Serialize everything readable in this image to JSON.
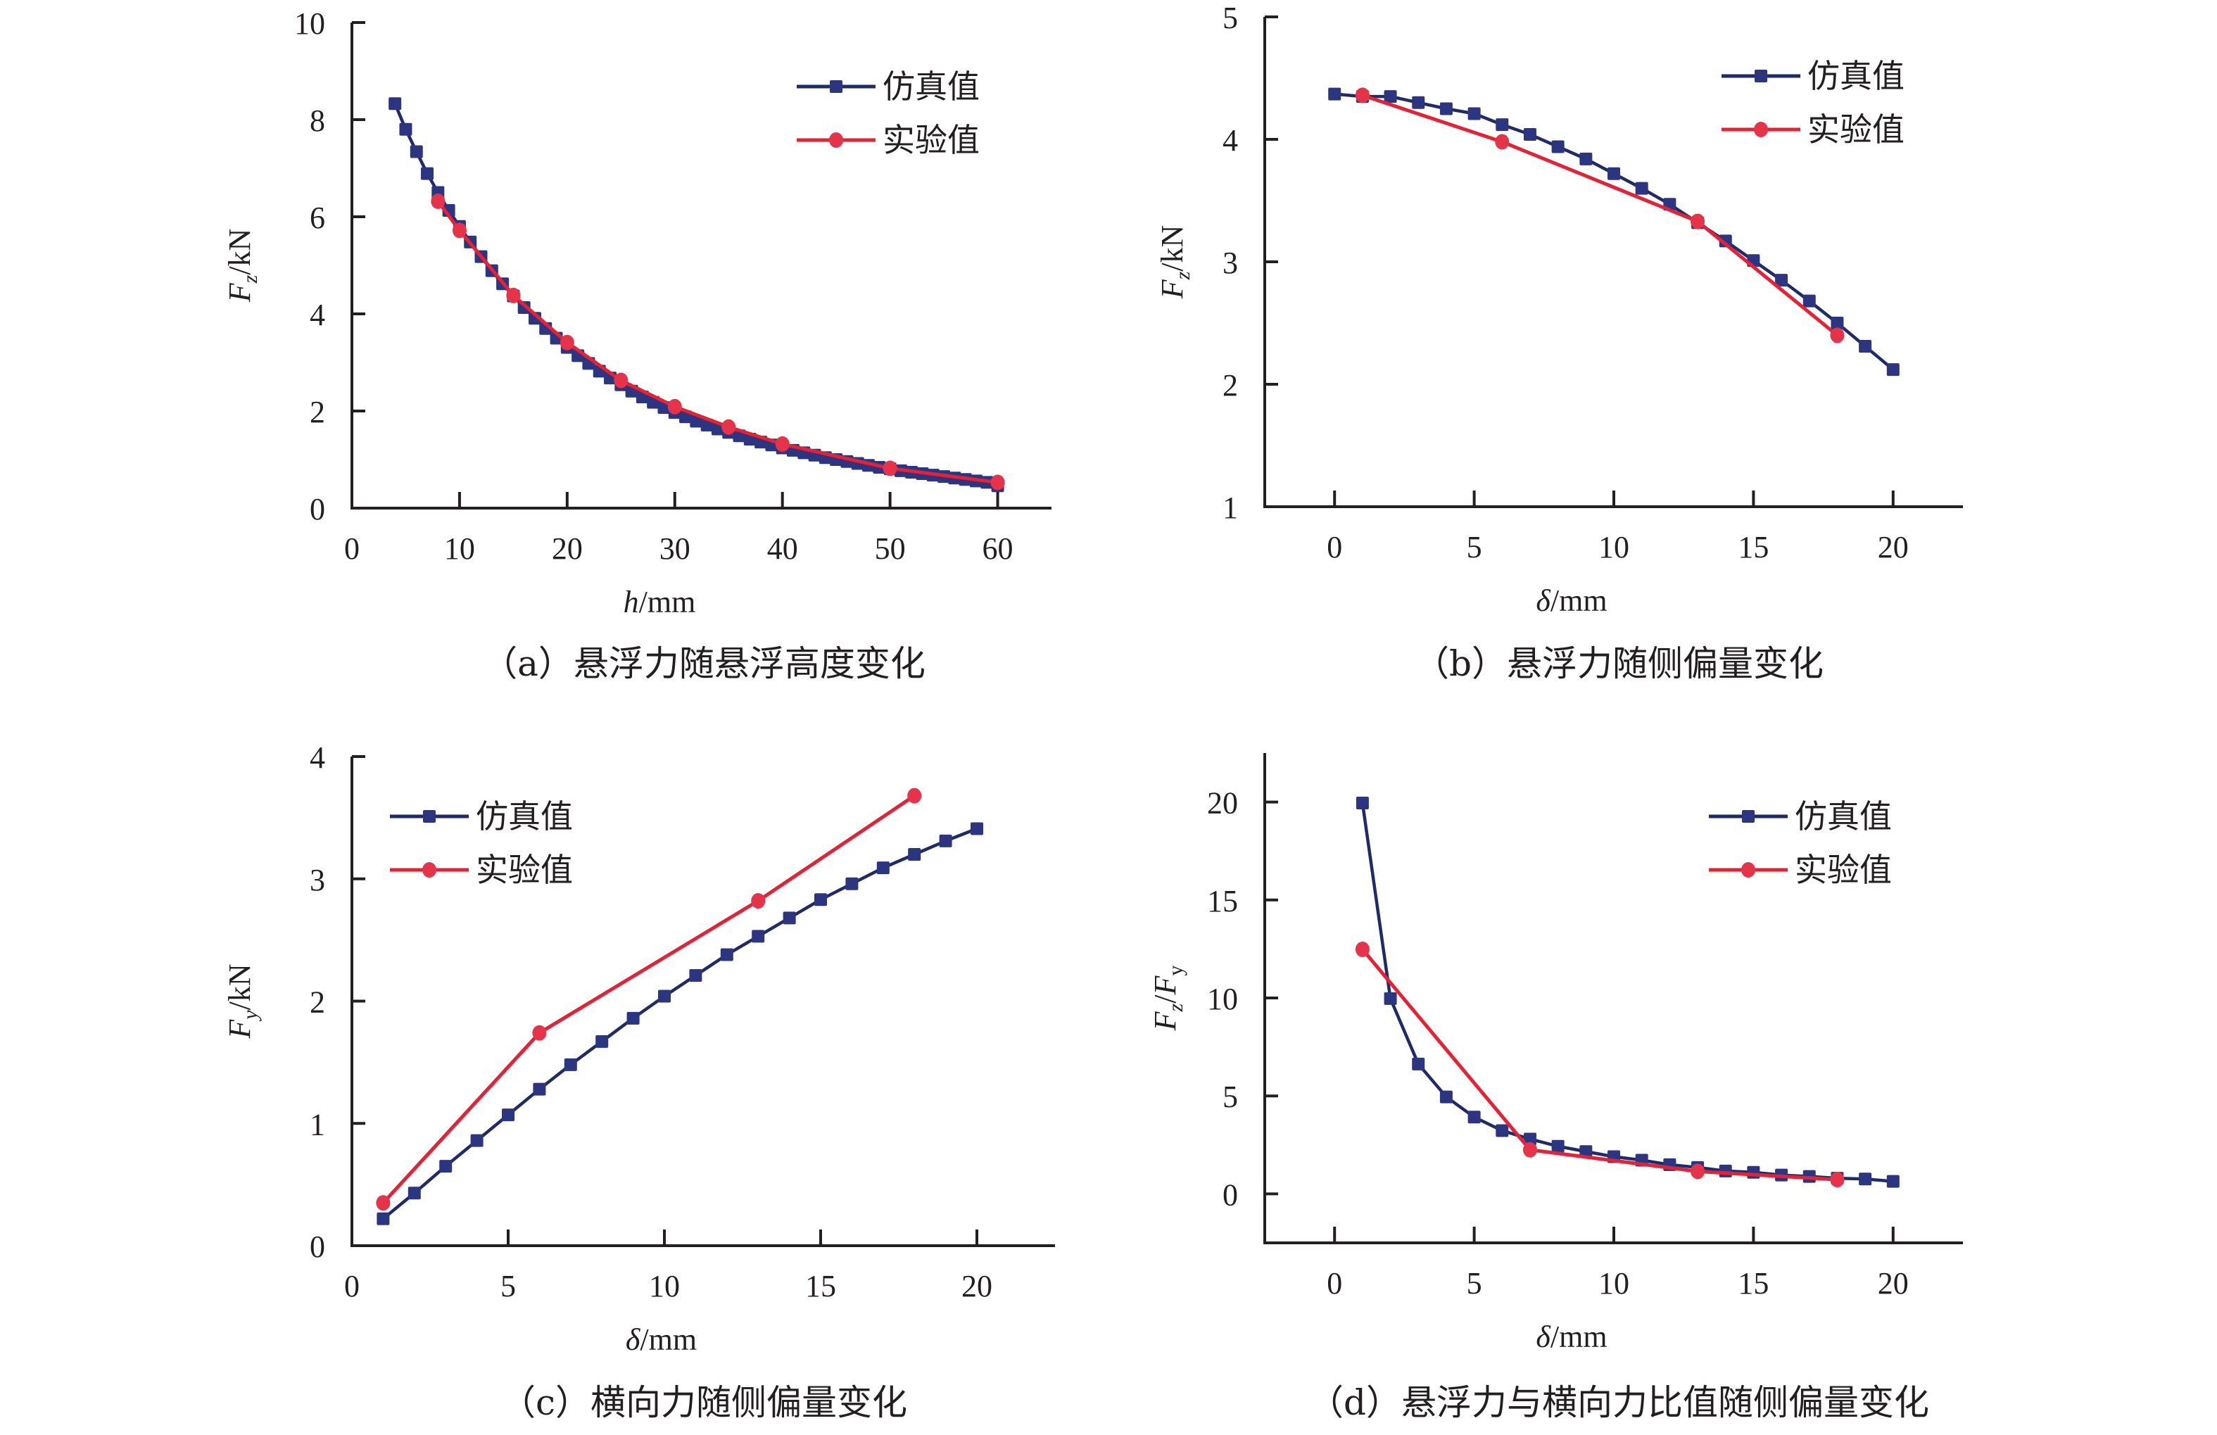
{
  "legend": {
    "sim": "仿真值",
    "exp": "实验值"
  },
  "colors": {
    "sim": "#2b3580",
    "sim_line": "#1f2a68",
    "exp": "#e5334a",
    "exp_line": "#e52235",
    "axis": "#231f20"
  },
  "chart_data": [
    {
      "id": "a",
      "type": "line",
      "caption": "（a）悬浮力随悬浮高度变化",
      "xlabel_italic": "h",
      "xlabel_unit": "/mm",
      "ylabel_italic": "F",
      "ylabel_sub": "z",
      "ylabel_unit": "/kN",
      "xlim": [
        0,
        65
      ],
      "ylim": [
        0,
        10
      ],
      "xticks": [
        0,
        10,
        20,
        30,
        40,
        50,
        60
      ],
      "yticks": [
        0,
        2,
        4,
        6,
        8,
        10
      ],
      "legend_position": "top-right",
      "series": [
        {
          "name": "仿真值",
          "key": "sim",
          "x": [
            4,
            5,
            6,
            7,
            8,
            9,
            10,
            11,
            12,
            13,
            14,
            15,
            16,
            17,
            18,
            19,
            20,
            21,
            22,
            23,
            24,
            25,
            26,
            27,
            28,
            29,
            30,
            31,
            32,
            33,
            34,
            35,
            36,
            37,
            38,
            39,
            40,
            41,
            42,
            43,
            44,
            45,
            46,
            47,
            48,
            49,
            50,
            51,
            52,
            53,
            54,
            55,
            56,
            57,
            58,
            59,
            60
          ],
          "y": [
            8.33,
            7.8,
            7.34,
            6.89,
            6.5,
            6.13,
            5.8,
            5.48,
            5.18,
            4.89,
            4.62,
            4.37,
            4.13,
            3.91,
            3.7,
            3.5,
            3.31,
            3.14,
            2.98,
            2.82,
            2.68,
            2.54,
            2.41,
            2.29,
            2.18,
            2.07,
            1.97,
            1.88,
            1.79,
            1.71,
            1.63,
            1.56,
            1.49,
            1.42,
            1.36,
            1.3,
            1.24,
            1.19,
            1.14,
            1.09,
            1.04,
            1.0,
            0.96,
            0.92,
            0.88,
            0.84,
            0.81,
            0.77,
            0.74,
            0.71,
            0.68,
            0.65,
            0.62,
            0.59,
            0.56,
            0.53,
            0.46
          ]
        },
        {
          "name": "实验值",
          "key": "exp",
          "x": [
            8,
            10,
            15,
            20,
            25,
            30,
            35,
            40,
            50,
            60
          ],
          "y": [
            6.32,
            5.72,
            4.38,
            3.41,
            2.63,
            2.09,
            1.67,
            1.32,
            0.82,
            0.53
          ]
        }
      ]
    },
    {
      "id": "b",
      "type": "line",
      "caption": "（b）悬浮力随侧偏量变化",
      "xlabel_italic": "δ",
      "xlabel_unit": "/mm",
      "ylabel_italic": "F",
      "ylabel_sub": "z",
      "ylabel_unit": "/kN",
      "xlim": [
        -2.5,
        22.5
      ],
      "ylim": [
        1,
        5
      ],
      "xticks": [
        0,
        5,
        10,
        15,
        20
      ],
      "yticks": [
        1,
        2,
        3,
        4,
        5
      ],
      "legend_position": "top-right",
      "series": [
        {
          "name": "仿真值",
          "key": "sim",
          "x": [
            0,
            1,
            2,
            3,
            4,
            5,
            6,
            7,
            8,
            9,
            10,
            11,
            12,
            13,
            14,
            15,
            16,
            17,
            18,
            19,
            20
          ],
          "y": [
            4.37,
            4.35,
            4.35,
            4.3,
            4.25,
            4.21,
            4.12,
            4.04,
            3.94,
            3.84,
            3.72,
            3.6,
            3.47,
            3.32,
            3.17,
            3.01,
            2.85,
            2.68,
            2.5,
            2.31,
            2.12
          ]
        },
        {
          "name": "实验值",
          "key": "exp",
          "x": [
            1,
            6,
            13,
            18
          ],
          "y": [
            4.36,
            3.98,
            3.33,
            2.4
          ]
        }
      ]
    },
    {
      "id": "c",
      "type": "line",
      "caption": "（c）横向力随侧偏量变化",
      "xlabel_italic": "δ",
      "xlabel_unit": "/mm",
      "ylabel_italic": "F",
      "ylabel_sub": "y",
      "ylabel_unit": "/kN",
      "xlim": [
        0,
        22.5
      ],
      "ylim": [
        0,
        4
      ],
      "xticks": [
        0,
        5,
        10,
        15,
        20
      ],
      "yticks": [
        0,
        1,
        2,
        3,
        4
      ],
      "legend_position": "top-left",
      "series": [
        {
          "name": "仿真值",
          "key": "sim",
          "x": [
            1,
            2,
            3,
            4,
            5,
            6,
            7,
            8,
            9,
            10,
            11,
            12,
            13,
            14,
            15,
            16,
            17,
            18,
            19,
            20
          ],
          "y": [
            0.22,
            0.43,
            0.65,
            0.86,
            1.07,
            1.28,
            1.48,
            1.67,
            1.86,
            2.04,
            2.21,
            2.38,
            2.53,
            2.68,
            2.83,
            2.96,
            3.09,
            3.2,
            3.31,
            3.41
          ]
        },
        {
          "name": "实验值",
          "key": "exp",
          "x": [
            1,
            6,
            13,
            18
          ],
          "y": [
            0.35,
            1.74,
            2.82,
            3.68
          ]
        }
      ]
    },
    {
      "id": "d",
      "type": "line",
      "caption": "（d）悬浮力与横向力比值随侧偏量变化",
      "xlabel_italic": "δ",
      "xlabel_unit": "/mm",
      "ylabel_italic": "F",
      "ylabel_sub": "z",
      "ylabel_unit": "",
      "ylabel_italic2": "F",
      "ylabel_sub2": "y",
      "xlim": [
        -2.5,
        22.5
      ],
      "ylim": [
        -2.5,
        22.5
      ],
      "xticks": [
        0,
        5,
        10,
        15,
        20
      ],
      "yticks": [
        0,
        5,
        10,
        15,
        20
      ],
      "legend_position": "top-right",
      "series": [
        {
          "name": "仿真值",
          "key": "sim",
          "x": [
            1,
            2,
            3,
            4,
            5,
            6,
            7,
            8,
            9,
            10,
            11,
            12,
            13,
            14,
            15,
            16,
            17,
            18,
            19,
            20
          ],
          "y": [
            19.95,
            9.97,
            6.63,
            4.95,
            3.92,
            3.23,
            2.8,
            2.43,
            2.16,
            1.9,
            1.72,
            1.49,
            1.35,
            1.17,
            1.1,
            0.96,
            0.89,
            0.8,
            0.76,
            0.64
          ]
        },
        {
          "name": "实验值",
          "key": "exp",
          "x": [
            1,
            7,
            13,
            18
          ],
          "y": [
            12.48,
            2.25,
            1.15,
            0.73
          ]
        }
      ]
    }
  ]
}
